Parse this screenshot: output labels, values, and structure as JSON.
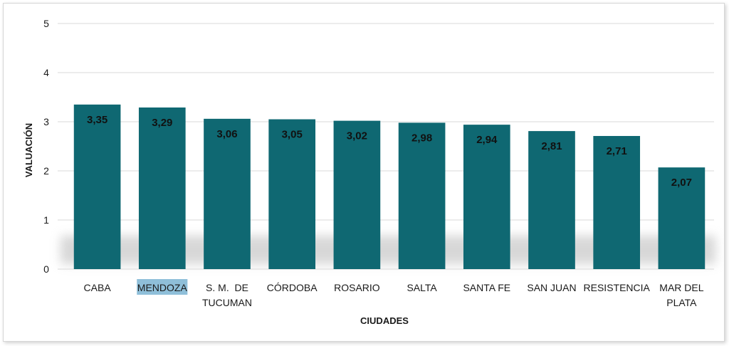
{
  "chart_data": {
    "type": "bar",
    "title": "",
    "xlabel": "CIUDADES",
    "ylabel": "VALUACIÓN",
    "ylim": [
      0,
      5
    ],
    "yticks": [
      "0",
      "1",
      "2",
      "3",
      "4",
      "5"
    ],
    "categories": [
      [
        "CABA"
      ],
      [
        "MENDOZA"
      ],
      [
        "S. M.  DE",
        "TUCUMAN"
      ],
      [
        "CÓRDOBA"
      ],
      [
        "ROSARIO"
      ],
      [
        "SALTA"
      ],
      [
        "SANTA FE"
      ],
      [
        "SAN JUAN"
      ],
      [
        "RESISTENCIA"
      ],
      [
        "MAR DEL",
        "PLATA"
      ]
    ],
    "values": [
      3.35,
      3.29,
      3.06,
      3.05,
      3.02,
      2.98,
      2.94,
      2.81,
      2.71,
      2.07
    ],
    "value_labels": [
      "3,35",
      "3,29",
      "3,06",
      "3,05",
      "3,02",
      "2,98",
      "2,94",
      "2,81",
      "2,71",
      "2,07"
    ],
    "highlighted_category": "MENDOZA",
    "grid": true,
    "colors": {
      "bar": "#0f6872",
      "grid": "#d9d9d9",
      "highlight": "#8fbfd9",
      "text": "#1a1a1a"
    }
  }
}
